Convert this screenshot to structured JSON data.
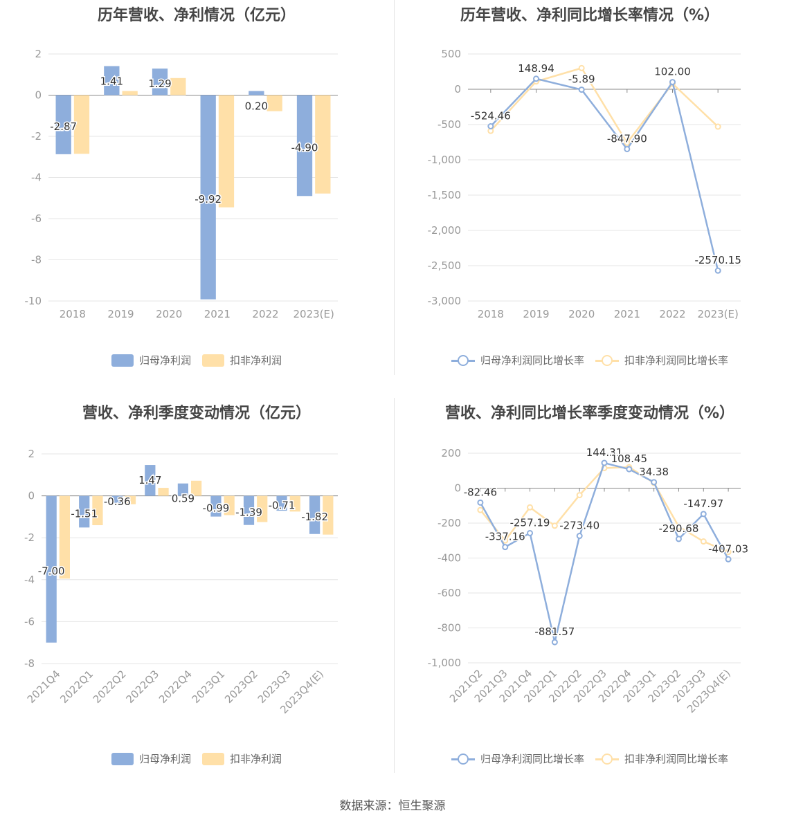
{
  "colors": {
    "net": "#8eaedc",
    "deduct": "#ffe0a8",
    "net_line": "#8eaedc",
    "deduct_line": "#ffe0a8",
    "grid": "#e6e6e6",
    "axis": "#999999"
  },
  "footer": "数据来源：恒生聚源",
  "chart_data": [
    {
      "type": "bar",
      "title": "历年营收、净利情况（亿元）",
      "categories": [
        "2018",
        "2019",
        "2020",
        "2021",
        "2022",
        "2023(E)"
      ],
      "ylim": [
        -10,
        2
      ],
      "yticks": [
        2,
        0,
        -2,
        -4,
        -6,
        -8,
        -10
      ],
      "series": [
        {
          "name": "归母净利润",
          "values": [
            -2.87,
            1.41,
            1.29,
            -9.92,
            0.2,
            -4.9
          ],
          "labels": [
            "-2.87",
            "1.41",
            "1.29",
            "-9.92",
            "0.20",
            "-4.90"
          ]
        },
        {
          "name": "扣非净利润",
          "values": [
            -2.85,
            0.2,
            0.83,
            -5.45,
            -0.78,
            -4.78
          ]
        }
      ],
      "legend": "bottom-center",
      "grid": true
    },
    {
      "type": "line",
      "title": "历年营收、净利同比增长率情况（%）",
      "categories": [
        "2018",
        "2019",
        "2020",
        "2021",
        "2022",
        "2023(E)"
      ],
      "ylim": [
        -3000,
        500
      ],
      "yticks": [
        "500",
        "0",
        "-500",
        "-1,000",
        "-1,500",
        "-2,000",
        "-2,500",
        "-3,000"
      ],
      "ytick_values": [
        500,
        0,
        -500,
        -1000,
        -1500,
        -2000,
        -2500,
        -3000
      ],
      "series": [
        {
          "name": "归母净利润同比增长率",
          "values": [
            -524.46,
            148.94,
            -5.89,
            -847.9,
            102.0,
            -2570.15
          ],
          "labels": [
            "-524.46",
            "148.94",
            "-5.89",
            "-847.90",
            "102.00",
            "-2570.15"
          ]
        },
        {
          "name": "扣非净利润同比增长率",
          "values": [
            -590,
            110,
            300,
            -760,
            80,
            -530
          ]
        }
      ],
      "legend": "bottom-center",
      "grid": true
    },
    {
      "type": "bar",
      "title": "营收、净利季度变动情况（亿元）",
      "categories": [
        "2021Q4",
        "2022Q1",
        "2022Q2",
        "2022Q3",
        "2022Q4",
        "2023Q1",
        "2023Q2",
        "2023Q3",
        "2023Q4(E)"
      ],
      "ylim": [
        -8,
        2
      ],
      "yticks": [
        2,
        0,
        -2,
        -4,
        -6,
        -8
      ],
      "series": [
        {
          "name": "归母净利润",
          "values": [
            -7.0,
            -1.51,
            -0.36,
            1.47,
            0.59,
            -0.99,
            -1.39,
            -0.71,
            -1.82
          ],
          "labels": [
            "-7.00",
            "-1.51",
            "-0.36",
            "1.47",
            "0.59",
            "-0.99",
            "-1.39",
            "-0.71",
            "-1.82"
          ]
        },
        {
          "name": "扣非净利润",
          "values": [
            -3.95,
            -1.4,
            -0.4,
            0.38,
            0.72,
            -0.92,
            -1.25,
            -0.75,
            -1.85
          ]
        }
      ],
      "legend": "bottom-center",
      "grid": true
    },
    {
      "type": "line",
      "title": "营收、净利同比增长率季度变动情况（%）",
      "categories": [
        "2021Q2",
        "2021Q3",
        "2021Q4",
        "2022Q1",
        "2022Q2",
        "2022Q3",
        "2022Q4",
        "2023Q1",
        "2023Q2",
        "2023Q3",
        "2023Q4(E)"
      ],
      "ylim": [
        -1000,
        200
      ],
      "yticks": [
        "200",
        "0",
        "-200",
        "-400",
        "-600",
        "-800",
        "-1,000"
      ],
      "ytick_values": [
        200,
        0,
        -200,
        -400,
        -600,
        -800,
        -1000
      ],
      "series": [
        {
          "name": "归母净利润同比增长率",
          "values": [
            -82.46,
            -337.16,
            -257.19,
            -881.57,
            -273.4,
            144.31,
            108.45,
            34.38,
            -290.68,
            -147.97,
            -407.03
          ],
          "labels": [
            "-82.46",
            "-337.16",
            "-257.19",
            "-881.57",
            "-273.40",
            "144.31",
            "108.45",
            "34.38",
            "-290.68",
            "-147.97",
            "-407.03"
          ]
        },
        {
          "name": "扣非净利润同比增长率",
          "values": [
            -125,
            -300,
            -110,
            -215,
            -40,
            115,
            120,
            30,
            -220,
            -305,
            -365
          ]
        }
      ],
      "legend": "bottom-center",
      "grid": true
    }
  ]
}
